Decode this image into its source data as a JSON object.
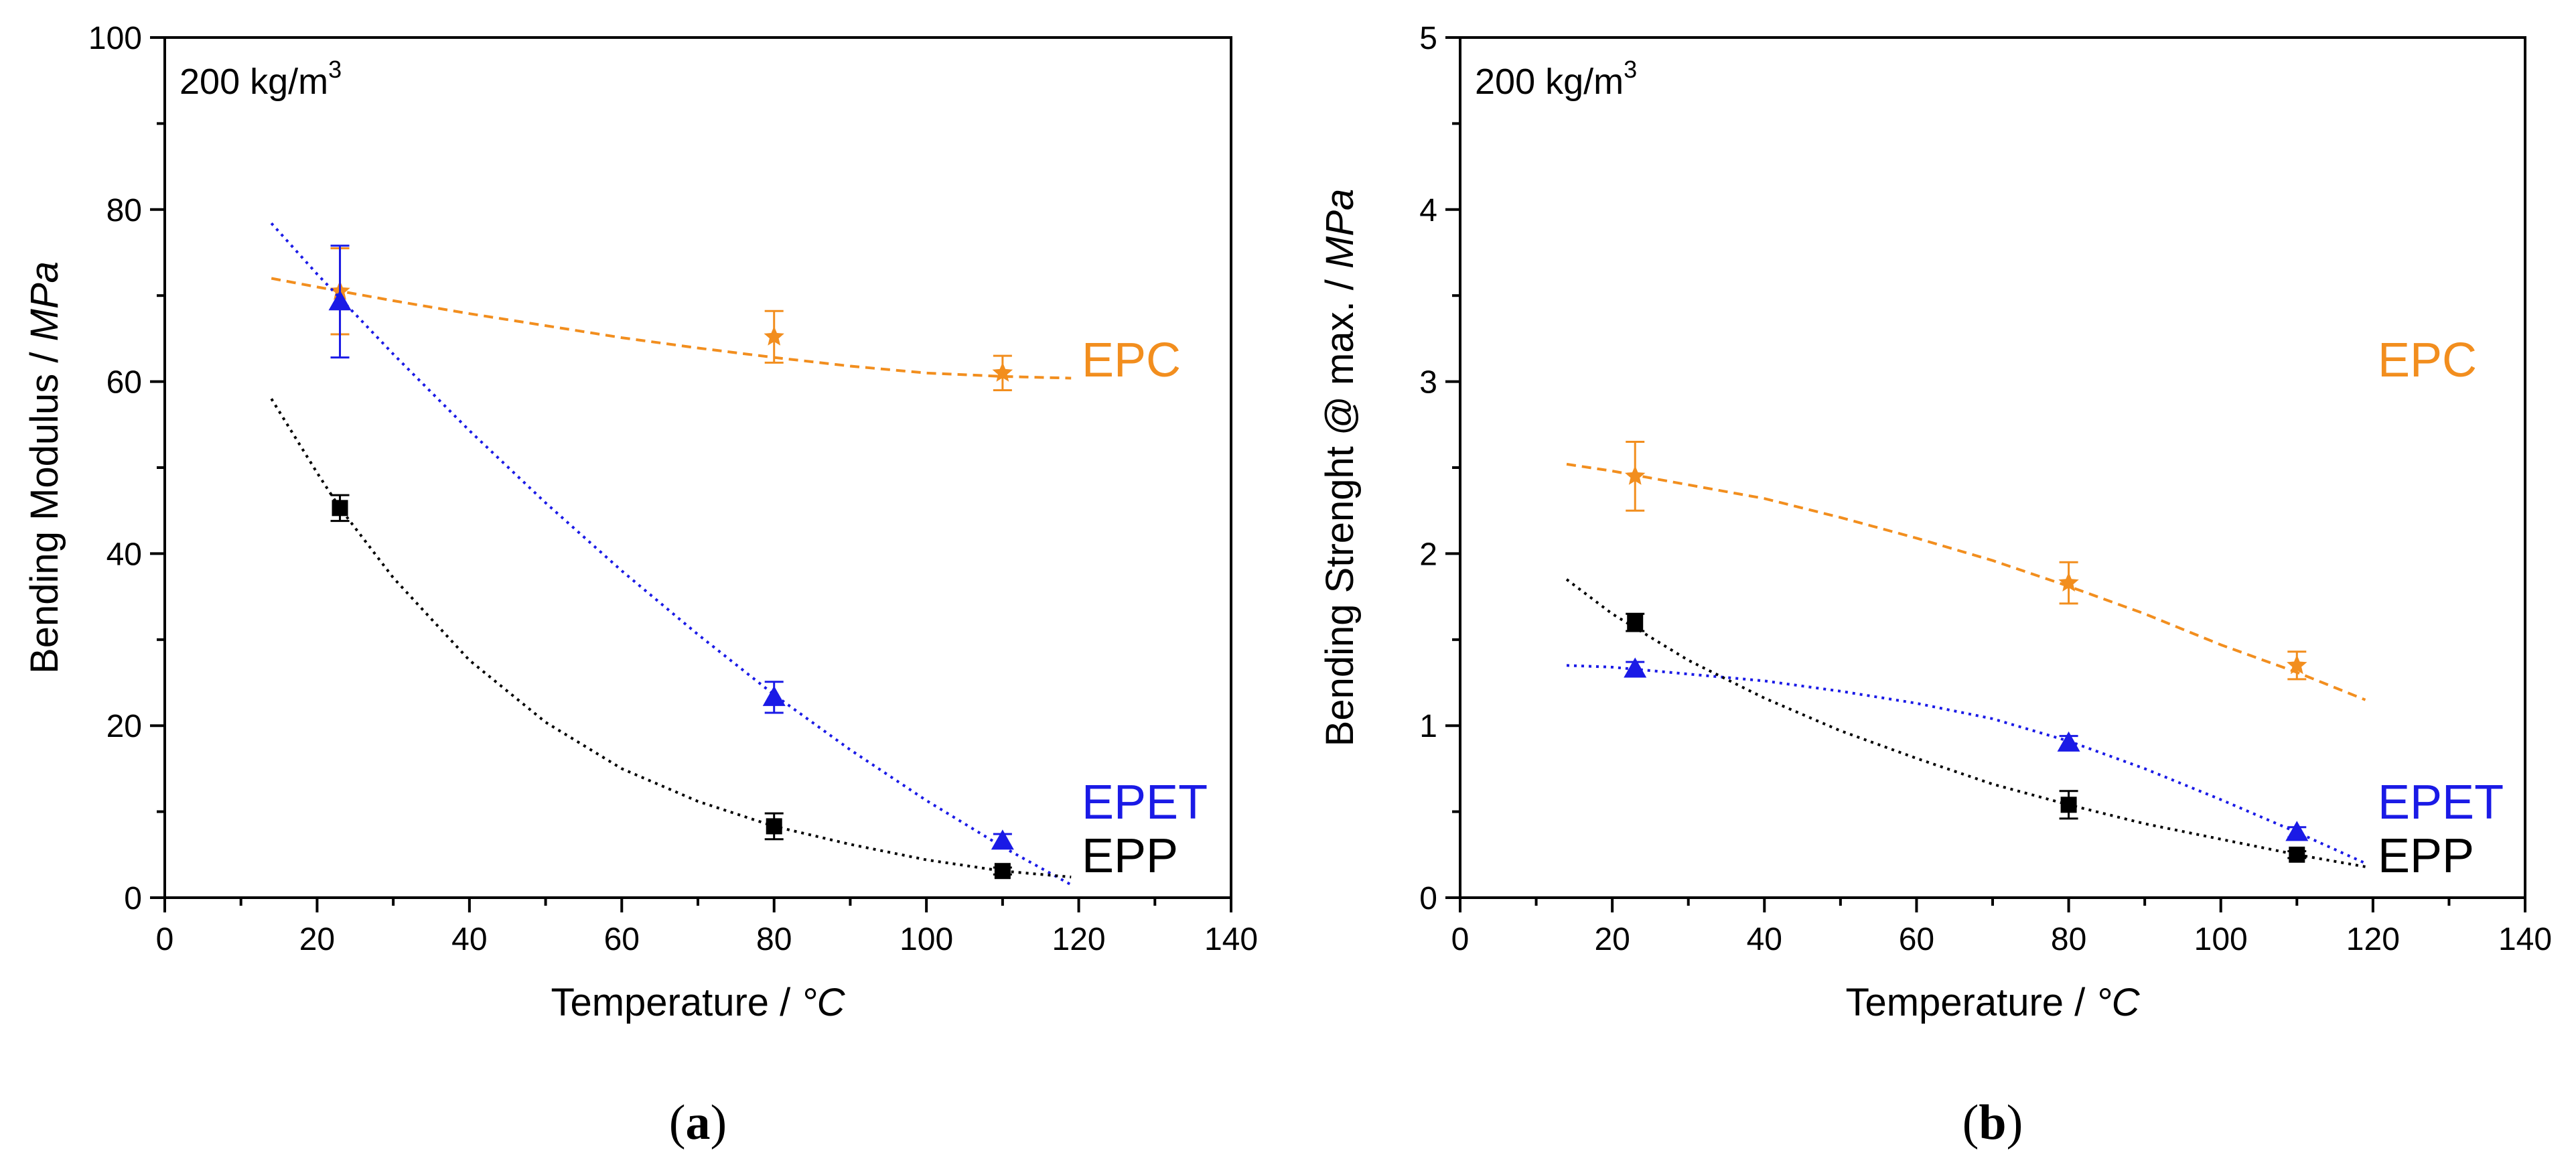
{
  "colors": {
    "EPC": "#f28e1e",
    "EPET": "#1a1ae6",
    "EPP": "#000000"
  },
  "chart_data": [
    {
      "type": "scatter",
      "panel": "a",
      "caption_letter": "a",
      "density_label": {
        "text": "200 kg/m",
        "superscript": "3"
      },
      "xlabel": {
        "text": "Temperature  /  ",
        "unit": "°C"
      },
      "ylabel": {
        "text": "Bending Modulus  /  ",
        "unit": "MPa"
      },
      "xlim": [
        0,
        140
      ],
      "ylim": [
        0,
        100
      ],
      "xticks": [
        "0",
        "20",
        "40",
        "60",
        "80",
        "100",
        "120",
        "140"
      ],
      "yticks": [
        "0",
        "20",
        "40",
        "60",
        "80",
        "100"
      ],
      "series": [
        {
          "name": "EPC",
          "marker": "star",
          "line": "dashed",
          "x": [
            23,
            80,
            110
          ],
          "y": [
            70.5,
            65.2,
            61.0
          ],
          "err": [
            5.0,
            3.0,
            2.0
          ],
          "fit_x": [
            14,
            20,
            30,
            40,
            50,
            60,
            70,
            80,
            90,
            100,
            110,
            119
          ],
          "fit_y": [
            72.0,
            71.0,
            69.4,
            67.9,
            66.5,
            65.1,
            63.9,
            62.8,
            61.8,
            61.0,
            60.6,
            60.4
          ]
        },
        {
          "name": "EPET",
          "marker": "triangle",
          "line": "dotted",
          "x": [
            23,
            80,
            110
          ],
          "y": [
            69.3,
            23.3,
            6.6
          ],
          "err": [
            6.5,
            1.8,
            0.8
          ],
          "fit_x": [
            14,
            20,
            30,
            40,
            50,
            60,
            70,
            80,
            90,
            100,
            110,
            119
          ],
          "fit_y": [
            78.4,
            72.5,
            63.2,
            54.3,
            45.9,
            38.0,
            30.6,
            23.6,
            17.2,
            11.3,
            5.9,
            1.5
          ]
        },
        {
          "name": "EPP",
          "marker": "square",
          "line": "dotted",
          "x": [
            23,
            80,
            110
          ],
          "y": [
            45.3,
            8.3,
            3.1
          ],
          "err": [
            1.5,
            1.5,
            0.4
          ],
          "fit_x": [
            14,
            20,
            23,
            30,
            40,
            50,
            60,
            70,
            80,
            90,
            100,
            110,
            119
          ],
          "fit_y": [
            58.0,
            49.4,
            45.3,
            37.2,
            27.6,
            20.4,
            15.0,
            11.2,
            8.3,
            6.2,
            4.4,
            3.1,
            2.4
          ]
        }
      ]
    },
    {
      "type": "scatter",
      "panel": "b",
      "caption_letter": "b",
      "density_label": {
        "text": "200 kg/m",
        "superscript": "3"
      },
      "xlabel": {
        "text": "Temperature  /  ",
        "unit": "°C"
      },
      "ylabel": {
        "text": "Bending Strenght @ max.  /  ",
        "unit": "MPa"
      },
      "xlim": [
        0,
        140
      ],
      "ylim": [
        0,
        5
      ],
      "xticks": [
        "0",
        "20",
        "40",
        "60",
        "80",
        "100",
        "120",
        "140"
      ],
      "yticks": [
        "0",
        "1",
        "2",
        "3",
        "4",
        "5"
      ],
      "series": [
        {
          "name": "EPC",
          "marker": "star",
          "line": "dashed",
          "x": [
            23,
            80,
            110
          ],
          "y": [
            2.45,
            1.83,
            1.35
          ],
          "err": [
            0.2,
            0.12,
            0.08
          ],
          "fit_x": [
            14,
            20,
            30,
            40,
            50,
            60,
            70,
            80,
            90,
            100,
            110,
            119
          ],
          "fit_y": [
            2.52,
            2.48,
            2.4,
            2.32,
            2.21,
            2.09,
            1.96,
            1.81,
            1.65,
            1.47,
            1.31,
            1.15
          ]
        },
        {
          "name": "EPET",
          "marker": "triangle",
          "line": "dotted",
          "x": [
            23,
            80,
            110
          ],
          "y": [
            1.33,
            0.9,
            0.38
          ],
          "err": [
            0.04,
            0.04,
            0.03
          ],
          "fit_x": [
            14,
            20,
            30,
            40,
            50,
            60,
            70,
            80,
            90,
            100,
            110,
            119
          ],
          "fit_y": [
            1.35,
            1.34,
            1.3,
            1.26,
            1.2,
            1.13,
            1.04,
            0.91,
            0.75,
            0.57,
            0.38,
            0.2
          ]
        },
        {
          "name": "EPP",
          "marker": "square",
          "line": "dotted",
          "x": [
            23,
            80,
            110
          ],
          "y": [
            1.6,
            0.54,
            0.25
          ],
          "err": [
            0.05,
            0.08,
            0.02
          ],
          "fit_x": [
            14,
            20,
            30,
            40,
            50,
            60,
            70,
            80,
            90,
            100,
            110,
            119
          ],
          "fit_y": [
            1.85,
            1.65,
            1.38,
            1.16,
            0.97,
            0.81,
            0.66,
            0.54,
            0.43,
            0.34,
            0.25,
            0.18
          ]
        }
      ]
    }
  ]
}
